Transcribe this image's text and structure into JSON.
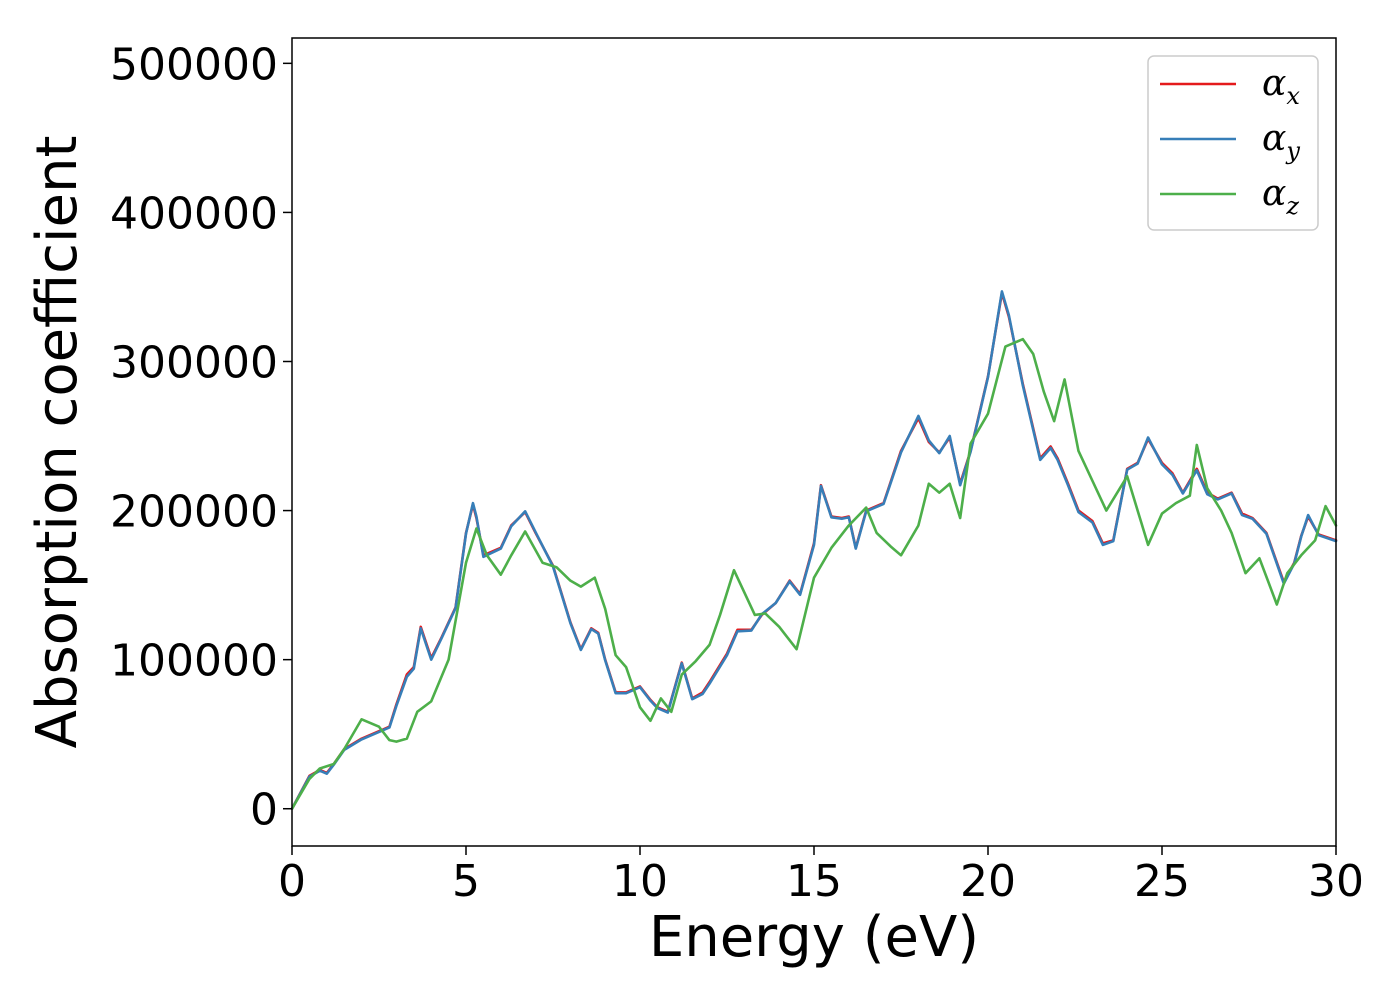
{
  "chart_data": {
    "type": "line",
    "xlabel": "Energy (eV)",
    "ylabel": "Absorption coefficient",
    "xlim": [
      0,
      30
    ],
    "ylim": [
      -25000,
      517000
    ],
    "x_ticks": [
      0,
      5,
      10,
      15,
      20,
      25,
      30
    ],
    "y_ticks": [
      0,
      100000,
      200000,
      300000,
      400000,
      500000
    ],
    "grid": false,
    "legend_position": "top-right",
    "series": [
      {
        "name": "α_x",
        "legend_base": "α",
        "legend_sub": "x",
        "color": "#e41a1c",
        "x": [
          0,
          0.5,
          0.8,
          1.0,
          1.2,
          1.5,
          2.0,
          2.5,
          2.8,
          3.0,
          3.3,
          3.5,
          3.7,
          4.0,
          4.3,
          4.7,
          5.0,
          5.2,
          5.3,
          5.5,
          6.0,
          6.3,
          6.7,
          7.0,
          7.5,
          8.0,
          8.3,
          8.6,
          8.8,
          9.0,
          9.3,
          9.6,
          10.0,
          10.3,
          10.5,
          10.8,
          11.2,
          11.5,
          11.8,
          12.0,
          12.5,
          12.8,
          13.2,
          13.5,
          13.9,
          14.3,
          14.6,
          15.0,
          15.2,
          15.5,
          15.8,
          16.0,
          16.2,
          16.5,
          17.0,
          17.5,
          18.0,
          18.3,
          18.6,
          18.9,
          19.2,
          19.5,
          20.0,
          20.4,
          20.6,
          21.0,
          21.5,
          21.8,
          22.0,
          22.3,
          22.6,
          23.0,
          23.3,
          23.6,
          24.0,
          24.3,
          24.6,
          25.0,
          25.3,
          25.6,
          26.0,
          26.3,
          26.6,
          27.0,
          27.3,
          27.6,
          28.0,
          28.5,
          28.8,
          29.0,
          29.2,
          29.5,
          30.0
        ],
        "y": [
          0,
          22000,
          26000,
          24000,
          30000,
          40000,
          47000,
          52000,
          55000,
          70000,
          90000,
          95000,
          122000,
          101000,
          115000,
          135000,
          185000,
          204000,
          195000,
          170000,
          175000,
          190000,
          199000,
          185000,
          163000,
          125000,
          107000,
          121000,
          118000,
          100000,
          78000,
          78000,
          82000,
          73000,
          68000,
          65000,
          98000,
          74000,
          78000,
          85000,
          104000,
          120000,
          120000,
          130000,
          138000,
          153000,
          144000,
          178000,
          217000,
          196000,
          195000,
          196000,
          175000,
          200000,
          205000,
          240000,
          262000,
          246000,
          239000,
          249000,
          218000,
          240000,
          290000,
          346000,
          330000,
          285000,
          235000,
          243000,
          235000,
          218000,
          200000,
          193000,
          178000,
          180000,
          228000,
          232000,
          248000,
          232000,
          225000,
          212000,
          228000,
          212000,
          208000,
          212000,
          198000,
          195000,
          185000,
          152000,
          165000,
          183000,
          196000,
          184000,
          180000
        ]
      },
      {
        "name": "α_y",
        "legend_base": "α",
        "legend_sub": "y",
        "color": "#377eb8",
        "x": [
          0,
          0.5,
          0.8,
          1.0,
          1.2,
          1.5,
          2.0,
          2.5,
          2.8,
          3.0,
          3.3,
          3.5,
          3.7,
          4.0,
          4.3,
          4.7,
          5.0,
          5.2,
          5.3,
          5.5,
          6.0,
          6.3,
          6.7,
          7.0,
          7.5,
          8.0,
          8.3,
          8.6,
          8.8,
          9.0,
          9.3,
          9.6,
          10.0,
          10.3,
          10.5,
          10.8,
          11.2,
          11.5,
          11.8,
          12.0,
          12.5,
          12.8,
          13.2,
          13.5,
          13.9,
          14.3,
          14.6,
          15.0,
          15.2,
          15.5,
          15.8,
          16.0,
          16.2,
          16.5,
          17.0,
          17.5,
          18.0,
          18.3,
          18.6,
          18.9,
          19.2,
          19.5,
          20.0,
          20.4,
          20.6,
          21.0,
          21.5,
          21.8,
          22.0,
          22.3,
          22.6,
          23.0,
          23.3,
          23.6,
          24.0,
          24.3,
          24.6,
          25.0,
          25.3,
          25.6,
          26.0,
          26.3,
          26.6,
          27.0,
          27.3,
          27.6,
          28.0,
          28.5,
          28.8,
          29.0,
          29.2,
          29.5,
          30.0
        ],
        "y": [
          0,
          21500,
          25500,
          23500,
          29500,
          39500,
          46500,
          51500,
          54500,
          69000,
          88500,
          94000,
          121000,
          100000,
          114500,
          134500,
          184500,
          205000,
          196000,
          169000,
          174500,
          189500,
          199500,
          185500,
          162500,
          124500,
          106500,
          120500,
          117500,
          99500,
          77500,
          77500,
          81500,
          72500,
          67500,
          64500,
          97500,
          73500,
          77000,
          84000,
          103000,
          119000,
          119500,
          130500,
          138000,
          152500,
          143500,
          177000,
          216500,
          195500,
          194500,
          195500,
          174500,
          199500,
          204500,
          239000,
          263500,
          247000,
          238500,
          250000,
          217000,
          239500,
          289500,
          347000,
          331000,
          284000,
          234000,
          242000,
          234000,
          217000,
          199000,
          192000,
          177000,
          179500,
          227500,
          231500,
          249000,
          231000,
          224000,
          211500,
          227000,
          211000,
          207500,
          211500,
          197000,
          194500,
          184500,
          151000,
          164500,
          182500,
          197000,
          183500,
          179500
        ]
      },
      {
        "name": "α_z",
        "legend_base": "α",
        "legend_sub": "z",
        "color": "#4daf4a",
        "x": [
          0,
          0.5,
          0.8,
          1.2,
          1.5,
          2.0,
          2.5,
          2.8,
          3.0,
          3.3,
          3.6,
          4.0,
          4.5,
          5.0,
          5.3,
          5.6,
          6.0,
          6.3,
          6.7,
          7.2,
          7.6,
          8.0,
          8.3,
          8.7,
          9.0,
          9.3,
          9.6,
          10.0,
          10.3,
          10.6,
          10.9,
          11.2,
          11.6,
          12.0,
          12.3,
          12.7,
          13.0,
          13.3,
          13.6,
          14.0,
          14.5,
          15.0,
          15.5,
          16.0,
          16.5,
          16.8,
          17.2,
          17.5,
          18.0,
          18.3,
          18.6,
          18.9,
          19.2,
          19.5,
          20.0,
          20.5,
          21.0,
          21.3,
          21.6,
          21.9,
          22.2,
          22.6,
          23.0,
          23.4,
          24.0,
          24.3,
          24.6,
          25.0,
          25.4,
          25.8,
          26.0,
          26.3,
          26.7,
          27.0,
          27.4,
          27.8,
          28.3,
          28.6,
          29.0,
          29.4,
          29.7,
          30.0
        ],
        "y": [
          0,
          20000,
          27000,
          30000,
          40000,
          60000,
          55000,
          46000,
          45000,
          47000,
          65000,
          72000,
          100000,
          165000,
          188000,
          170000,
          157000,
          170000,
          186000,
          165000,
          162000,
          153000,
          149000,
          155000,
          134000,
          103000,
          95000,
          68000,
          59000,
          74000,
          65000,
          90000,
          99000,
          110000,
          130000,
          160000,
          145000,
          130000,
          131000,
          122000,
          107000,
          155000,
          175000,
          190000,
          202000,
          185000,
          176000,
          170000,
          190000,
          218000,
          212000,
          218000,
          195000,
          245000,
          265000,
          310000,
          315000,
          305000,
          280000,
          260000,
          288000,
          240000,
          220000,
          200000,
          223000,
          200000,
          177000,
          198000,
          205000,
          210000,
          244000,
          215000,
          200000,
          185000,
          158000,
          168000,
          137000,
          158000,
          170000,
          180000,
          203000,
          190000
        ]
      }
    ]
  }
}
